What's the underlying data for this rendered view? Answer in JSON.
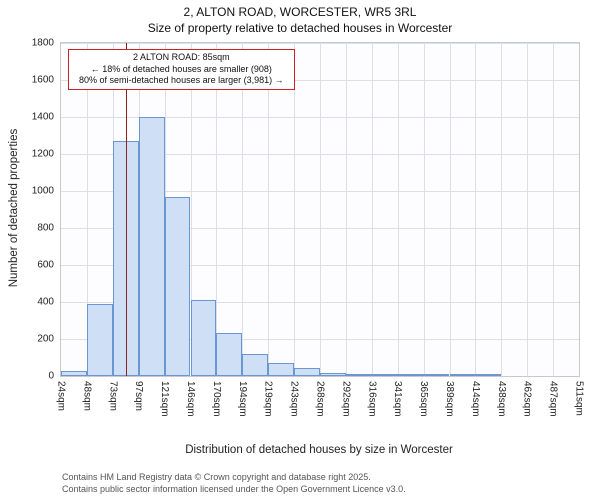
{
  "chart": {
    "title": "2, ALTON ROAD, WORCESTER, WR5 3RL",
    "subtitle": "Size of property relative to detached houses in Worcester",
    "ylabel": "Number of detached properties",
    "xlabel": "Distribution of detached houses by size in Worcester"
  },
  "annotation": {
    "line1": "2 ALTON ROAD: 85sqm",
    "line2": "← 18% of detached houses are smaller (908)",
    "line3": "80% of semi-detached houses are larger (3,981) →"
  },
  "footer": {
    "line1": "Contains HM Land Registry data © Crown copyright and database right 2025.",
    "line2": "Contains public sector information licensed under the Open Government Licence v3.0."
  },
  "chart_data": {
    "type": "bar",
    "title": "2, ALTON ROAD, WORCESTER, WR5 3RL — Size of property relative to detached houses in Worcester",
    "xlabel": "Distribution of detached houses by size in Worcester",
    "ylabel": "Number of detached properties",
    "categories": [
      "24sqm",
      "48sqm",
      "73sqm",
      "97sqm",
      "121sqm",
      "146sqm",
      "170sqm",
      "194sqm",
      "219sqm",
      "243sqm",
      "268sqm",
      "292sqm",
      "316sqm",
      "341sqm",
      "365sqm",
      "389sqm",
      "414sqm",
      "438sqm",
      "462sqm",
      "487sqm",
      "511sqm"
    ],
    "values": [
      25,
      390,
      1270,
      1400,
      965,
      410,
      230,
      120,
      70,
      45,
      15,
      12,
      10,
      8,
      5,
      3,
      2,
      0,
      0,
      0
    ],
    "ylim": [
      0,
      1800
    ],
    "ytick_step": 200,
    "grid": true,
    "marker": {
      "value": 85,
      "label": "85sqm"
    },
    "colors": {
      "bar_fill": "#cfdff5",
      "bar_border": "#6b96d2",
      "grid": "#dcdfe8",
      "marker": "#8b2222",
      "annotation_border": "#cc2222"
    }
  }
}
